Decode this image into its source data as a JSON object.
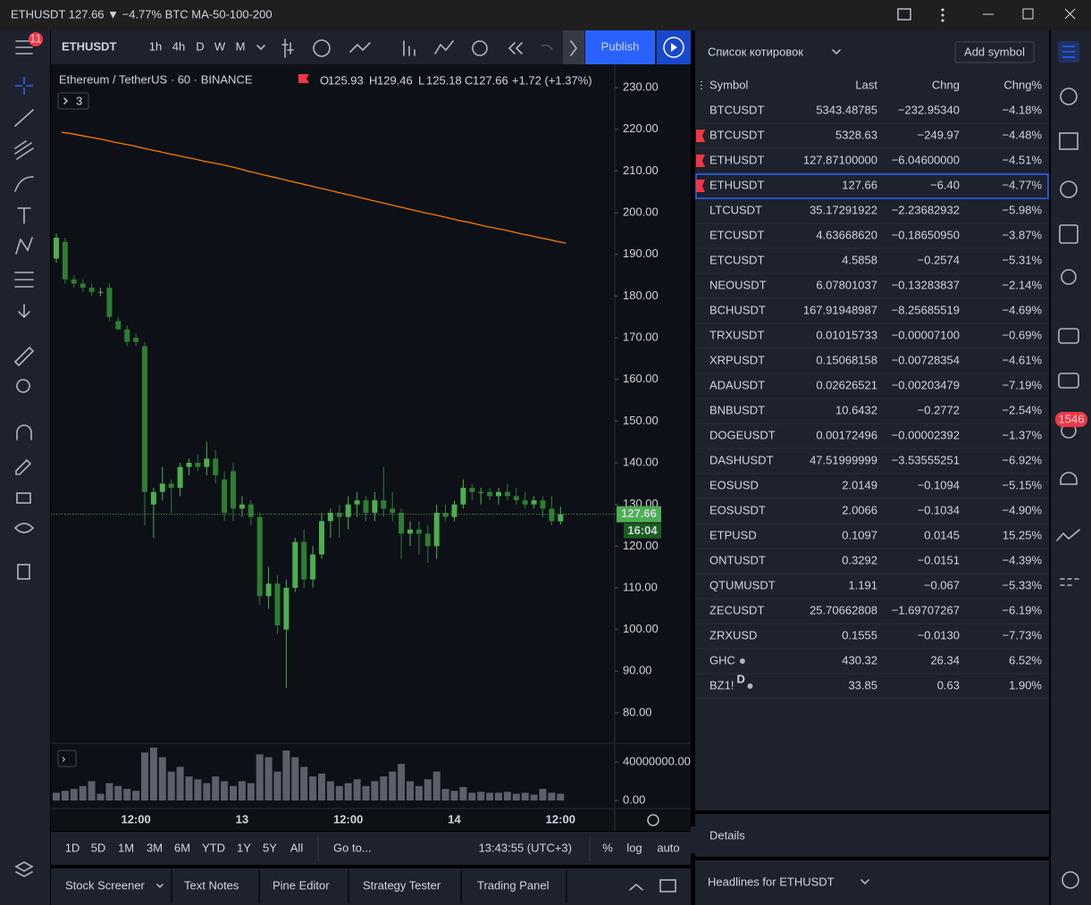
{
  "window": {
    "title": "ETHUSDT 127.66 ▼ −4.77% BTC MA-50-100-200"
  },
  "left_toolbar": {
    "badge": "11"
  },
  "top_toolbar": {
    "symbol": "ETHUSDT",
    "intervals": [
      "1h",
      "4h",
      "D",
      "W",
      "M"
    ],
    "active_interval": 0,
    "publish": "Publish"
  },
  "chart_data": {
    "type": "candlestick",
    "title": "Ethereum / TetherUS · 60 · BINANCE",
    "legend": [
      {
        "label": "O",
        "value": "125.93"
      },
      {
        "label": "H",
        "value": "129.46"
      },
      {
        "label": "L",
        "value": "125.18"
      },
      {
        "label": "C",
        "value": "127.66"
      }
    ],
    "change": "+1.72 (+1.37%)",
    "indicators_count": "3",
    "categories": [
      null,
      null,
      null,
      null,
      null,
      null,
      null,
      null,
      null,
      "12:00",
      null,
      null,
      null,
      null,
      null,
      null,
      null,
      null,
      null,
      null,
      null,
      "13",
      null,
      null,
      null,
      null,
      null,
      null,
      null,
      null,
      null,
      null,
      null,
      "12:00",
      null,
      null,
      null,
      null,
      null,
      null,
      null,
      null,
      null,
      null,
      null,
      "14",
      null,
      null,
      null,
      null,
      null,
      null,
      null,
      null,
      null,
      null,
      null,
      "12:00"
    ],
    "open": [
      189,
      193,
      184,
      183,
      182,
      181,
      182,
      174,
      172,
      170,
      168,
      130,
      133,
      135,
      134,
      139,
      140,
      139,
      141,
      136,
      138,
      129,
      130,
      127,
      108,
      111,
      100,
      110,
      121,
      112,
      118,
      126,
      128,
      127,
      130,
      131,
      128,
      131,
      129,
      128,
      123,
      124,
      123,
      120,
      128,
      127,
      130,
      134,
      133,
      133,
      132,
      133,
      132,
      131,
      130,
      131,
      129,
      125.93
    ],
    "high": [
      195,
      194,
      185,
      184,
      183,
      182,
      183,
      175,
      173,
      171,
      169,
      134,
      139,
      136,
      140,
      141,
      142,
      145,
      143,
      138,
      140,
      132,
      131,
      128,
      115,
      113,
      112,
      122,
      124,
      120,
      128,
      129,
      130,
      132,
      133,
      132,
      133,
      139,
      133,
      129,
      126,
      126,
      125,
      130,
      130,
      131,
      136,
      135,
      134,
      134,
      134,
      135,
      134,
      133,
      132,
      132,
      132,
      129.46
    ],
    "low": [
      188,
      183,
      182,
      181,
      180,
      180,
      174,
      172,
      168,
      168,
      125,
      122,
      131,
      128,
      132,
      137,
      138,
      137,
      135,
      126,
      126,
      127,
      125,
      106,
      105,
      99,
      86,
      109,
      110,
      110,
      117,
      122,
      122,
      124,
      127,
      126,
      126,
      127,
      126,
      117,
      120,
      118,
      116,
      117,
      126,
      126,
      129,
      131,
      130,
      131,
      130,
      131,
      130,
      129,
      129,
      127,
      125,
      125.18
    ],
    "close": [
      194,
      184,
      183,
      182,
      181,
      181,
      175,
      172,
      169,
      169,
      133,
      133,
      135,
      134,
      139,
      140,
      139,
      141,
      137,
      128,
      129,
      130,
      127,
      108,
      111,
      101,
      110,
      121,
      112,
      118,
      126,
      128,
      127,
      130,
      131,
      128,
      131,
      129,
      128,
      123,
      124,
      123,
      120,
      128,
      127,
      130,
      134,
      133,
      133,
      132,
      133,
      132,
      131,
      130,
      131,
      129,
      126,
      127.66
    ],
    "up_color": "#4caf50",
    "down_color": "#2e7d32",
    "ylim": [
      72.7,
      235.6
    ],
    "yticks": [
      {
        "value": 80,
        "label": "80.00"
      },
      {
        "value": 90,
        "label": "90.00"
      },
      {
        "value": 100,
        "label": "100.00"
      },
      {
        "value": 110,
        "label": "110.00"
      },
      {
        "value": 120,
        "label": "120.00"
      },
      {
        "value": 130,
        "label": "130.00"
      },
      {
        "value": 140,
        "label": "140.00"
      },
      {
        "value": 150,
        "label": "150.00"
      },
      {
        "value": 160,
        "label": "160.00"
      },
      {
        "value": 170,
        "label": "170.00"
      },
      {
        "value": 180,
        "label": "180.00"
      },
      {
        "value": 190,
        "label": "190.00"
      },
      {
        "value": 200,
        "label": "200.00"
      },
      {
        "value": 210,
        "label": "210.00"
      },
      {
        "value": 220,
        "label": "220.00"
      },
      {
        "value": 230,
        "label": "230.00"
      }
    ],
    "ma": {
      "color": "#f57c00",
      "values": [
        219.3,
        219.0,
        218.6,
        218.2,
        217.8,
        217.4,
        216.9,
        216.5,
        216.1,
        215.6,
        215.1,
        214.7,
        214.2,
        213.8,
        213.3,
        212.9,
        212.4,
        212.0,
        211.6,
        211.1,
        210.6,
        210.0,
        209.5,
        209.0,
        208.5,
        208.0,
        207.5,
        207.0,
        206.5,
        206.0,
        205.5,
        205.0,
        204.5,
        204.0,
        203.5,
        203.0,
        202.5,
        202.0,
        201.5,
        201.0,
        200.5,
        200.0,
        199.6,
        199.1,
        198.6,
        198.1,
        197.7,
        197.2,
        196.7,
        196.3,
        195.9,
        195.4,
        194.9,
        194.5,
        194.0,
        193.6,
        193.1,
        192.7
      ]
    },
    "last_price": 127.66,
    "countdown": "16:04",
    "volume": {
      "color": "#5d606b",
      "values": [
        8000000,
        10000000,
        12000000,
        15000000,
        20000000,
        7000000,
        18000000,
        15000000,
        12000000,
        10000000,
        50000000,
        55000000,
        45000000,
        30000000,
        35000000,
        25000000,
        22000000,
        18000000,
        25000000,
        20000000,
        15000000,
        20000000,
        18000000,
        48000000,
        45000000,
        30000000,
        52000000,
        45000000,
        35000000,
        25000000,
        28000000,
        20000000,
        15000000,
        18000000,
        22000000,
        15000000,
        20000000,
        25000000,
        30000000,
        38000000,
        20000000,
        15000000,
        22000000,
        30000000,
        12000000,
        10000000,
        14000000,
        8000000,
        9000000,
        8000000,
        8000000,
        9000000,
        7000000,
        8000000,
        6000000,
        12000000,
        8000000,
        7000000
      ],
      "ylim": [
        -8400000,
        59500000
      ],
      "yticks": [
        {
          "value": 0,
          "label": "0.00"
        },
        {
          "value": 40000000,
          "label": "40000000.00"
        }
      ]
    }
  },
  "bottom_bar": {
    "ranges": [
      "1D",
      "5D",
      "1M",
      "3M",
      "6M",
      "YTD",
      "1Y",
      "5Y",
      "All"
    ],
    "goto": "Go to...",
    "time": "13:43:55 (UTC+3)",
    "percent": "%",
    "log": "log",
    "auto": "auto"
  },
  "bottom_tabs": [
    "Stock Screener",
    "Text Notes",
    "Pine Editor",
    "Strategy Tester",
    "Trading Panel"
  ],
  "watchlist": {
    "title": "Список котировок",
    "add_symbol": "Add symbol",
    "columns": [
      "Symbol",
      "Last",
      "Chng",
      "Chng%"
    ],
    "up_color": "#26a69a",
    "down_color": "#f7525f",
    "selected_row": 3,
    "rows": [
      {
        "symbol": "BTCUSDT",
        "last": "5343.48785",
        "chng": "−232.95340",
        "pct": "−4.18%"
      },
      {
        "symbol": "BTCUSDT",
        "last": "5328.63",
        "chng": "−249.97",
        "pct": "−4.48%",
        "flag": true
      },
      {
        "symbol": "ETHUSDT",
        "last": "127.87100000",
        "chng": "−6.04600000",
        "pct": "−4.51%",
        "flag": true
      },
      {
        "symbol": "ETHUSDT",
        "last": "127.66",
        "chng": "−6.40",
        "pct": "−4.77%",
        "flag": true,
        "last_colored": true
      },
      {
        "symbol": "LTCUSDT",
        "last": "35.17291922",
        "chng": "−2.23682932",
        "pct": "−5.98%"
      },
      {
        "symbol": "ETCUSDT",
        "last": "4.63668620",
        "chng": "−0.18650950",
        "pct": "−3.87%"
      },
      {
        "symbol": "ETCUSDT",
        "last": "4.5858",
        "chng": "−0.2574",
        "pct": "−5.31%"
      },
      {
        "symbol": "NEOUSDT",
        "last": "6.07801037",
        "chng": "−0.13283837",
        "pct": "−2.14%"
      },
      {
        "symbol": "BCHUSDT",
        "last": "167.91948987",
        "chng": "−8.25685519",
        "pct": "−4.69%"
      },
      {
        "symbol": "TRXUSDT",
        "last": "0.01015733",
        "chng": "−0.00007100",
        "pct": "−0.69%"
      },
      {
        "symbol": "XRPUSDT",
        "last": "0.15068158",
        "chng": "−0.00728354",
        "pct": "−4.61%"
      },
      {
        "symbol": "ADAUSDT",
        "last": "0.02626521",
        "chng": "−0.00203479",
        "pct": "−7.19%"
      },
      {
        "symbol": "BNBUSDT",
        "last": "10.6432",
        "chng": "−0.2772",
        "pct": "−2.54%"
      },
      {
        "symbol": "DOGEUSDT",
        "last": "0.00172496",
        "chng": "−0.00002392",
        "pct": "−1.37%"
      },
      {
        "symbol": "DASHUSDT",
        "last": "47.51999999",
        "chng": "−3.53555251",
        "pct": "−6.92%"
      },
      {
        "symbol": "EOSUSD",
        "last": "2.0149",
        "chng": "−0.1094",
        "pct": "−5.15%"
      },
      {
        "symbol": "EOSUSDT",
        "last": "2.0066",
        "chng": "−0.1034",
        "pct": "−4.90%",
        "last_colored": true
      },
      {
        "symbol": "ETPUSD",
        "last": "0.1097",
        "chng": "0.0145",
        "pct": "15.25%"
      },
      {
        "symbol": "ONTUSDT",
        "last": "0.3292",
        "chng": "−0.0151",
        "pct": "−4.39%"
      },
      {
        "symbol": "QTUMUSDT",
        "last": "1.191",
        "chng": "−0.067",
        "pct": "−5.33%"
      },
      {
        "symbol": "ZECUSDT",
        "last": "25.70662808",
        "chng": "−1.69707267",
        "pct": "−6.19%"
      },
      {
        "symbol": "ZRXUSD",
        "last": "0.1555",
        "chng": "−0.0130",
        "pct": "−7.73%"
      },
      {
        "symbol": "GHC",
        "last": "430.32",
        "chng": "26.34",
        "pct": "6.52%",
        "dot": true
      },
      {
        "symbol": "BZ1!",
        "badge": "D",
        "last": "33.85",
        "chng": "0.63",
        "pct": "1.90%",
        "dot": true
      }
    ]
  },
  "details": "Details",
  "headlines": "Headlines for ETHUSDT",
  "right_toolbar": {
    "badge": "1546"
  }
}
